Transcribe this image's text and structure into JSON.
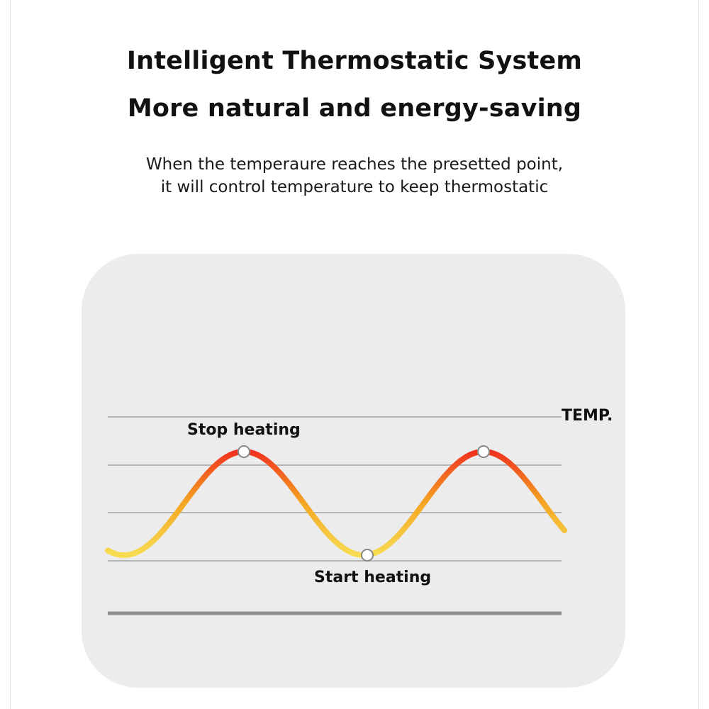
{
  "header": {
    "title_line1": "Intelligent Thermostatic System",
    "title_line2": "More natural and energy-saving"
  },
  "description": {
    "line1": "When the temperaure reaches the presetted point,",
    "line2": "it will control temperature to keep thermostatic"
  },
  "diagram": {
    "axis_label": "TEMP.",
    "peak_label": "Stop heating",
    "trough_label": "Start heating",
    "colors": {
      "panel": "#ececec",
      "gridline": "#b5b5b5",
      "baseline": "#8f8f8f",
      "curve_hot": "#f0331e",
      "curve_warm": "#f5a623",
      "curve_cool": "#f7dc52",
      "marker_fill": "#ffffff",
      "marker_stroke": "#888888"
    }
  }
}
